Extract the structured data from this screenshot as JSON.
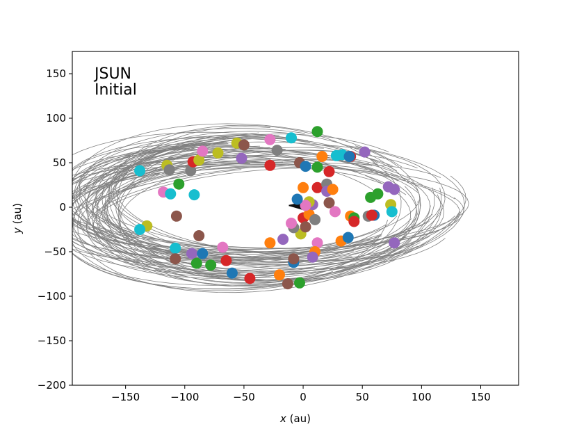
{
  "chart_data": {
    "type": "scatter",
    "annotation_lines": [
      "JSUN",
      "Initial"
    ],
    "xlabel_var": "x",
    "xlabel_unit": " (au)",
    "ylabel_var": "y",
    "ylabel_unit": " (au)",
    "xlim": [
      -195,
      182
    ],
    "ylim": [
      -200,
      175
    ],
    "xticks": [
      -150,
      -100,
      -50,
      0,
      50,
      100,
      150
    ],
    "yticks": [
      -200,
      -150,
      -100,
      -50,
      0,
      50,
      100,
      150
    ],
    "xtick_labels": [
      "−150",
      "−100",
      "−50",
      "0",
      "50",
      "100",
      "150"
    ],
    "ytick_labels": [
      "−200",
      "−150",
      "−100",
      "−50",
      "0",
      "50",
      "100",
      "150"
    ],
    "grid": false,
    "trail_color": "#808080",
    "palette": [
      "#1f77b4",
      "#ff7f0e",
      "#2ca02c",
      "#d62728",
      "#9467bd",
      "#8c564b",
      "#e377c2",
      "#7f7f7f",
      "#bcbd22",
      "#17becf"
    ],
    "points": [
      {
        "x": -138,
        "y": 41,
        "c": 9
      },
      {
        "x": -132,
        "y": -21,
        "c": 8
      },
      {
        "x": -138,
        "y": -25,
        "c": 9
      },
      {
        "x": -115,
        "y": 47,
        "c": 8
      },
      {
        "x": -113,
        "y": 42,
        "c": 7
      },
      {
        "x": -118,
        "y": 17,
        "c": 6
      },
      {
        "x": -112,
        "y": 15,
        "c": 9
      },
      {
        "x": -105,
        "y": 26,
        "c": 2
      },
      {
        "x": -107,
        "y": -10,
        "c": 5
      },
      {
        "x": -108,
        "y": -46,
        "c": 9
      },
      {
        "x": -108,
        "y": -58,
        "c": 5
      },
      {
        "x": -95,
        "y": 41,
        "c": 7
      },
      {
        "x": -92,
        "y": 14,
        "c": 9
      },
      {
        "x": -93,
        "y": 51,
        "c": 3
      },
      {
        "x": -88,
        "y": 53,
        "c": 8
      },
      {
        "x": -85,
        "y": 63,
        "c": 6
      },
      {
        "x": -88,
        "y": -32,
        "c": 5
      },
      {
        "x": -94,
        "y": -52,
        "c": 4
      },
      {
        "x": -85,
        "y": -52,
        "c": 0
      },
      {
        "x": -90,
        "y": -63,
        "c": 2
      },
      {
        "x": -78,
        "y": -65,
        "c": 2
      },
      {
        "x": -72,
        "y": 61,
        "c": 8
      },
      {
        "x": -68,
        "y": -45,
        "c": 6
      },
      {
        "x": -65,
        "y": -60,
        "c": 3
      },
      {
        "x": -60,
        "y": -74,
        "c": 0
      },
      {
        "x": -56,
        "y": 72,
        "c": 8
      },
      {
        "x": -50,
        "y": 70,
        "c": 5
      },
      {
        "x": -52,
        "y": 55,
        "c": 4
      },
      {
        "x": -45,
        "y": -80,
        "c": 3
      },
      {
        "x": -28,
        "y": 76,
        "c": 6
      },
      {
        "x": -28,
        "y": 47,
        "c": 3
      },
      {
        "x": -28,
        "y": -40,
        "c": 1
      },
      {
        "x": -22,
        "y": 64,
        "c": 7
      },
      {
        "x": -20,
        "y": -76,
        "c": 1
      },
      {
        "x": -17,
        "y": -36,
        "c": 4
      },
      {
        "x": -10,
        "y": 78,
        "c": 9
      },
      {
        "x": -13,
        "y": -86,
        "c": 5
      },
      {
        "x": -8,
        "y": -62,
        "c": 0
      },
      {
        "x": -8,
        "y": -58,
        "c": 5
      },
      {
        "x": -3,
        "y": -85,
        "c": 2
      },
      {
        "x": -3,
        "y": 50,
        "c": 5
      },
      {
        "x": 2,
        "y": 46,
        "c": 0
      },
      {
        "x": 0,
        "y": 22,
        "c": 1
      },
      {
        "x": -2,
        "y": -30,
        "c": 8
      },
      {
        "x": -8,
        "y": -23,
        "c": 7
      },
      {
        "x": -10,
        "y": -18,
        "c": 6
      },
      {
        "x": 0,
        "y": -12,
        "c": 3
      },
      {
        "x": 2,
        "y": -22,
        "c": 5
      },
      {
        "x": 5,
        "y": -8,
        "c": 1
      },
      {
        "x": 8,
        "y": 3,
        "c": 4
      },
      {
        "x": 12,
        "y": 85,
        "c": 2
      },
      {
        "x": 12,
        "y": 45,
        "c": 2
      },
      {
        "x": 12,
        "y": 22,
        "c": 3
      },
      {
        "x": 16,
        "y": 57,
        "c": 1
      },
      {
        "x": 20,
        "y": 26,
        "c": 7
      },
      {
        "x": 22,
        "y": 40,
        "c": 3
      },
      {
        "x": 20,
        "y": 18,
        "c": 4
      },
      {
        "x": 25,
        "y": 20,
        "c": 1
      },
      {
        "x": 22,
        "y": 5,
        "c": 5
      },
      {
        "x": 10,
        "y": -14,
        "c": 7
      },
      {
        "x": 12,
        "y": -40,
        "c": 6
      },
      {
        "x": 10,
        "y": -50,
        "c": 1
      },
      {
        "x": 8,
        "y": -56,
        "c": 4
      },
      {
        "x": 27,
        "y": -5,
        "c": 6
      },
      {
        "x": 28,
        "y": 58,
        "c": 9
      },
      {
        "x": 33,
        "y": 59,
        "c": 9
      },
      {
        "x": 40,
        "y": 57,
        "c": 3
      },
      {
        "x": 39,
        "y": 57,
        "c": 0
      },
      {
        "x": 52,
        "y": 62,
        "c": 4
      },
      {
        "x": 40,
        "y": -10,
        "c": 1
      },
      {
        "x": 43,
        "y": -12,
        "c": 2
      },
      {
        "x": 43,
        "y": -16,
        "c": 3
      },
      {
        "x": 32,
        "y": -38,
        "c": 1
      },
      {
        "x": 38,
        "y": -34,
        "c": 0
      },
      {
        "x": 55,
        "y": -10,
        "c": 7
      },
      {
        "x": 57,
        "y": 11,
        "c": 2
      },
      {
        "x": 63,
        "y": 15,
        "c": 2
      },
      {
        "x": 60,
        "y": -9,
        "c": 0
      },
      {
        "x": 58,
        "y": -9,
        "c": 3
      },
      {
        "x": 72,
        "y": 23,
        "c": 4
      },
      {
        "x": 77,
        "y": 20,
        "c": 4
      },
      {
        "x": 74,
        "y": 3,
        "c": 8
      },
      {
        "x": 75,
        "y": -5,
        "c": 9
      },
      {
        "x": 77,
        "y": -40,
        "c": 4
      },
      {
        "x": 5,
        "y": 6,
        "c": 8
      },
      {
        "x": 2,
        "y": 2,
        "c": 6
      },
      {
        "x": -5,
        "y": 9,
        "c": 0
      }
    ]
  }
}
